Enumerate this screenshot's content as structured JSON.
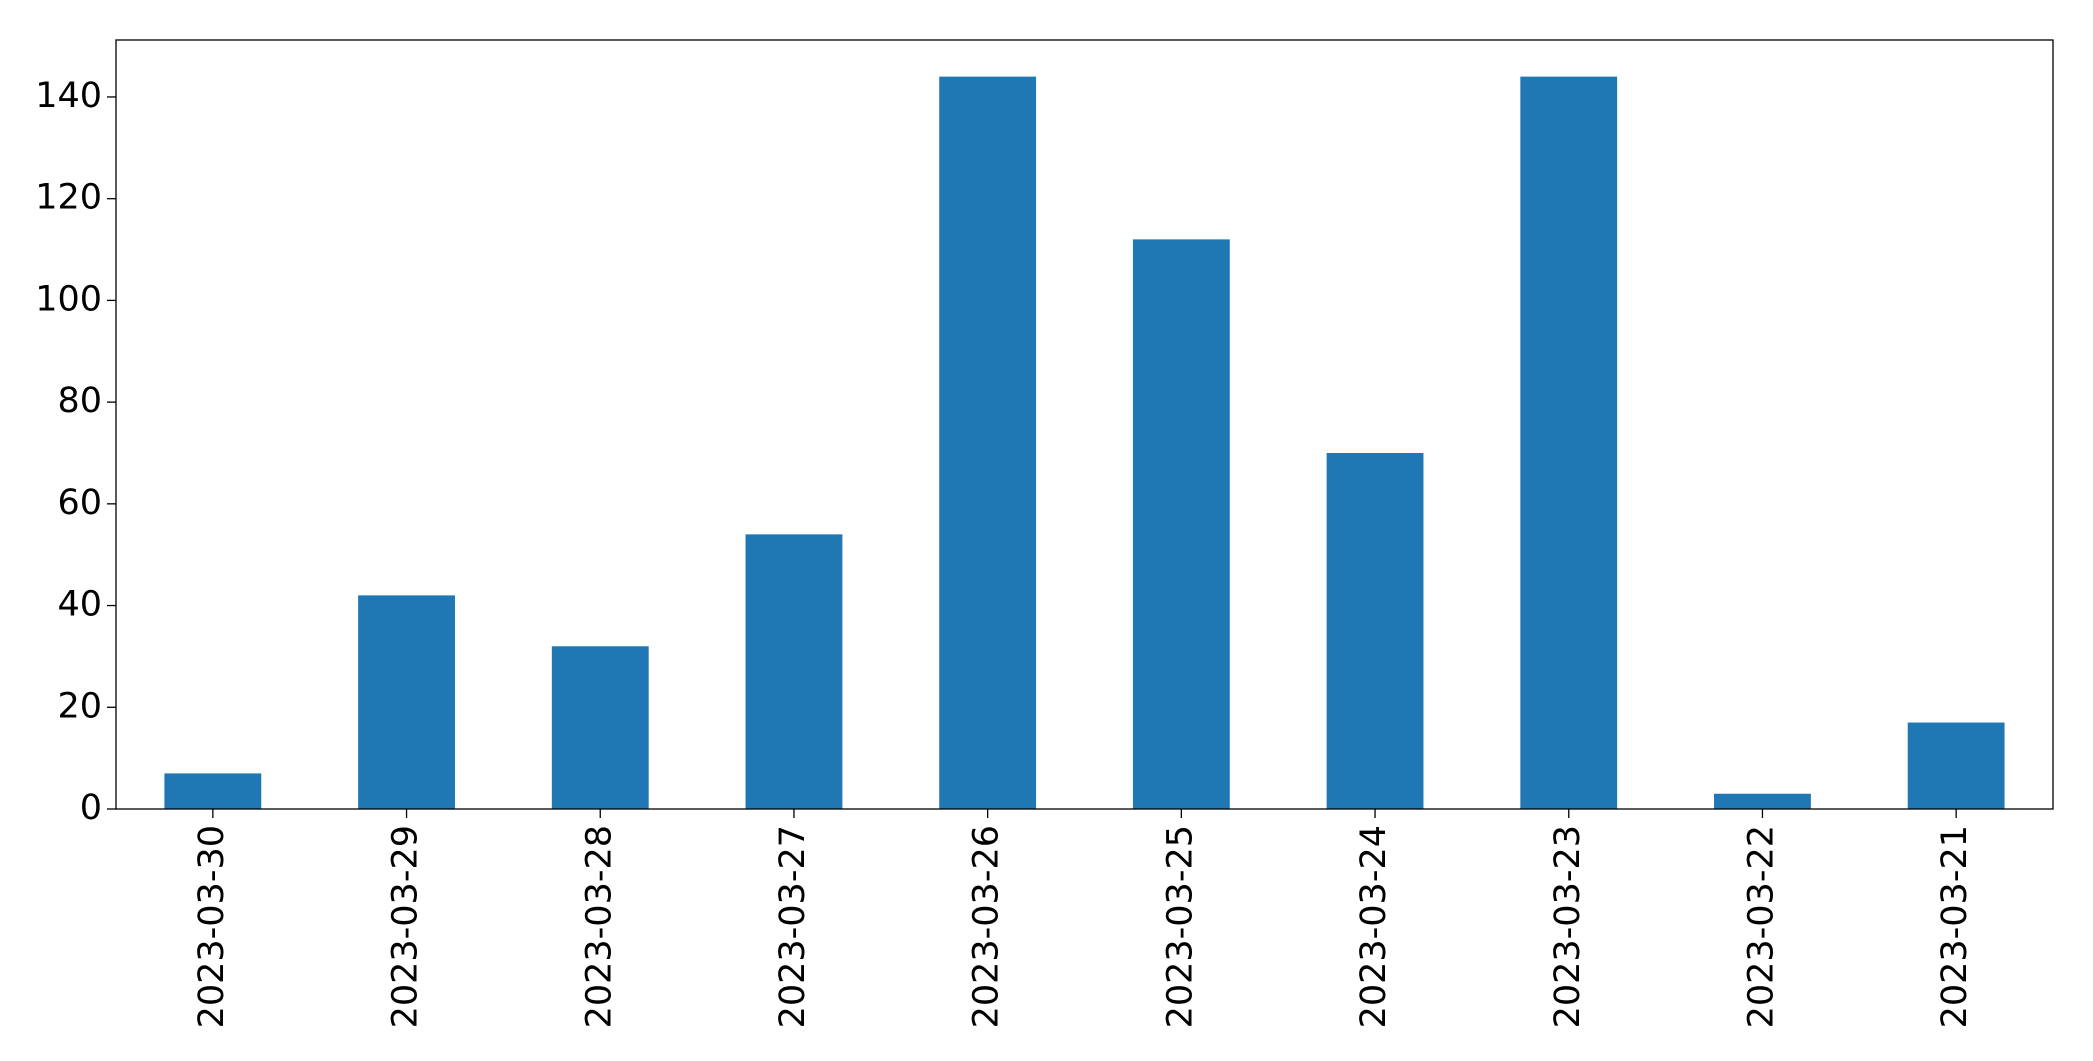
{
  "chart_data": {
    "type": "bar",
    "categories": [
      "2023-03-30",
      "2023-03-29",
      "2023-03-28",
      "2023-03-27",
      "2023-03-26",
      "2023-03-25",
      "2023-03-24",
      "2023-03-23",
      "2023-03-22",
      "2023-03-21"
    ],
    "values": [
      7,
      42,
      32,
      54,
      144,
      112,
      70,
      144,
      3,
      17
    ],
    "color": "#1f77b4",
    "ylim": [
      0,
      151.2
    ],
    "yticks": [
      0,
      20,
      40,
      60,
      80,
      100,
      120,
      140
    ],
    "grid": false
  }
}
